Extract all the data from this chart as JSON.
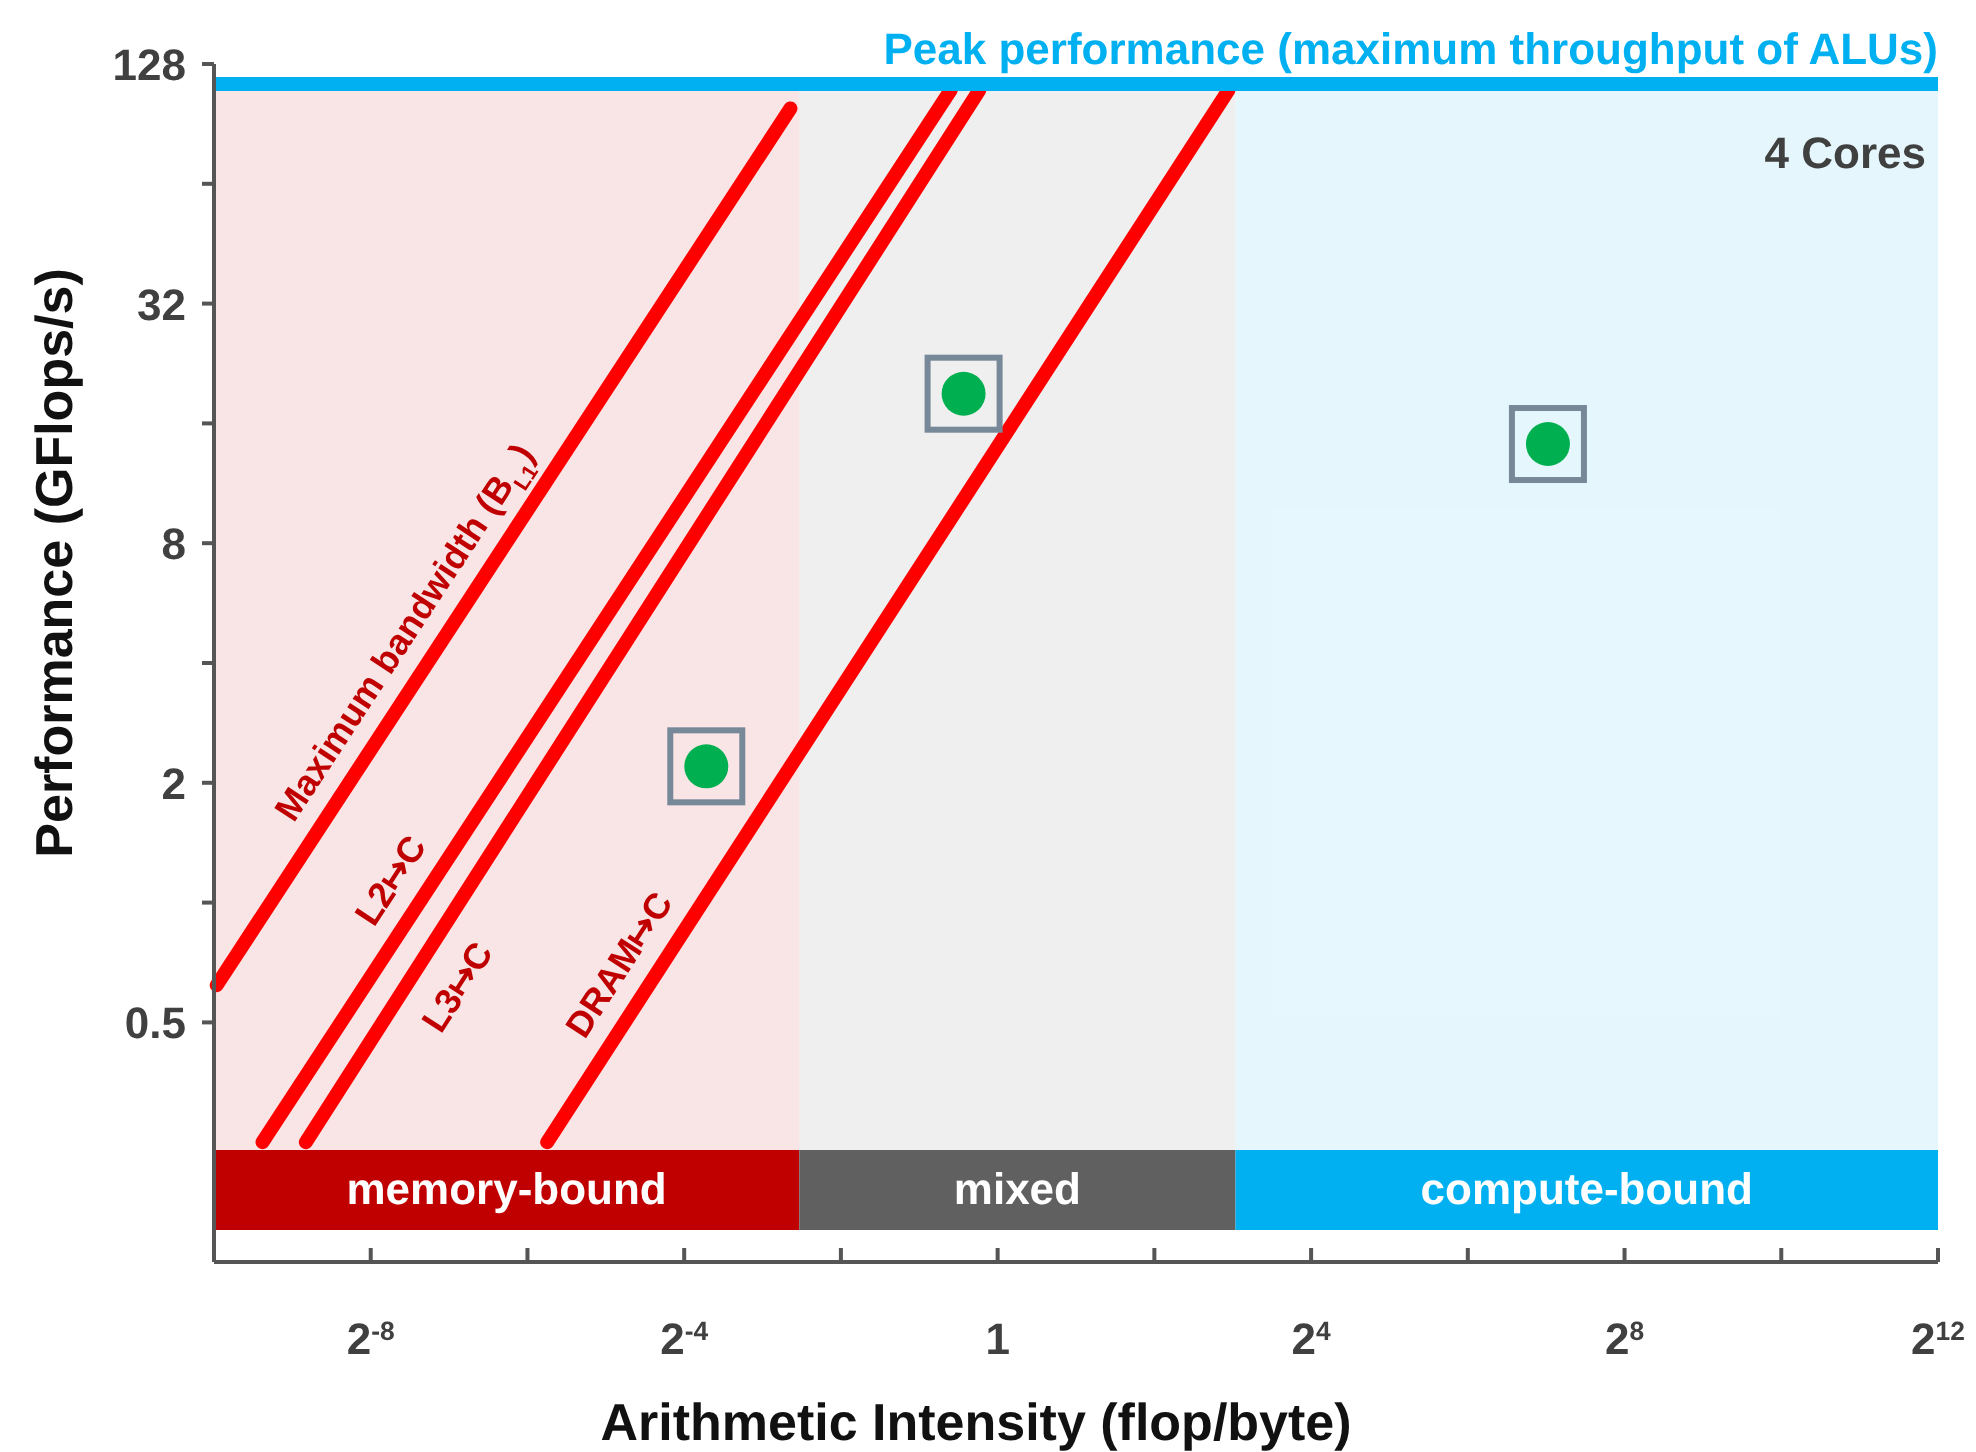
{
  "chart_data": {
    "type": "line",
    "xlabel": "Arithmetic Intensity (flop/byte)",
    "ylabel": "Performance (GFlops/s)",
    "log": "xy",
    "xlim": [
      0.0009765625,
      4096
    ],
    "ylim": [
      0.125,
      128
    ],
    "xticks": [
      {
        "value": 0.0009765625,
        "label": null
      },
      {
        "value": 0.00390625,
        "label": "2$^{-8}$"
      },
      {
        "value": 0.015625,
        "label": null
      },
      {
        "value": 0.0625,
        "label": "2$^{-4}$"
      },
      {
        "value": 0.25,
        "label": null
      },
      1,
      {
        "value": 4,
        "label": null
      },
      {
        "value": 16,
        "label": "2$^{4}$"
      },
      {
        "value": 64,
        "label": null
      },
      {
        "value": 256,
        "label": "2$^{8}$"
      },
      {
        "value": 1024,
        "label": null
      },
      {
        "value": 4096,
        "label": "2$^{12}$"
      }
    ],
    "yticks": [
      0.5,
      {
        "value": 1,
        "label": null
      },
      2,
      {
        "value": 4,
        "label": null
      },
      8,
      {
        "value": 16,
        "label": null
      },
      32,
      {
        "value": 64,
        "label": null
      },
      128
    ],
    "series": [
      {
        "name": "Maximum bandwidth (B$_{L1}$)",
        "color": "#ff0000",
        "x": [
          0.001,
          0.16
        ],
        "values": [
          0.62,
          99
        ]
      },
      {
        "name": "L2↦C",
        "color": "#ff0000",
        "x": [
          0.0015,
          0.66
        ],
        "values": [
          0.25,
          110
        ]
      },
      {
        "name": "L3↦C",
        "color": "#ff0000",
        "x": [
          0.0022,
          0.85
        ],
        "values": [
          0.25,
          110
        ]
      },
      {
        "name": "DRAM↦C",
        "color": "#ff0000",
        "x": [
          0.0186,
          7.7
        ],
        "values": [
          0.25,
          110
        ]
      },
      {
        "type": "scatter",
        "color": "#00b050",
        "marker": "circle",
        "x": [
          0.076,
          0.74,
          130
        ],
        "values": [
          2.2,
          19,
          14.2
        ]
      }
    ],
    "ref_lines": [
      {
        "axis": "y",
        "value": 114,
        "label": "Peak performance (maximum throughput of ALUs)",
        "color": "#00b0f0"
      }
    ],
    "bands": [
      {
        "axis": "x",
        "from": 0.0009765625,
        "to": 0.173,
        "label": "memory-bound",
        "color": "#c00000"
      },
      {
        "axis": "x",
        "from": 0.173,
        "to": 8.2,
        "label": "mixed",
        "color": "#606060"
      },
      {
        "axis": "x",
        "from": 8.2,
        "to": 4096,
        "label": "compute-bound",
        "color": "#00b0f0"
      }
    ],
    "annotations": [
      "4 Cores"
    ],
    "grid": false,
    "legend": false
  }
}
